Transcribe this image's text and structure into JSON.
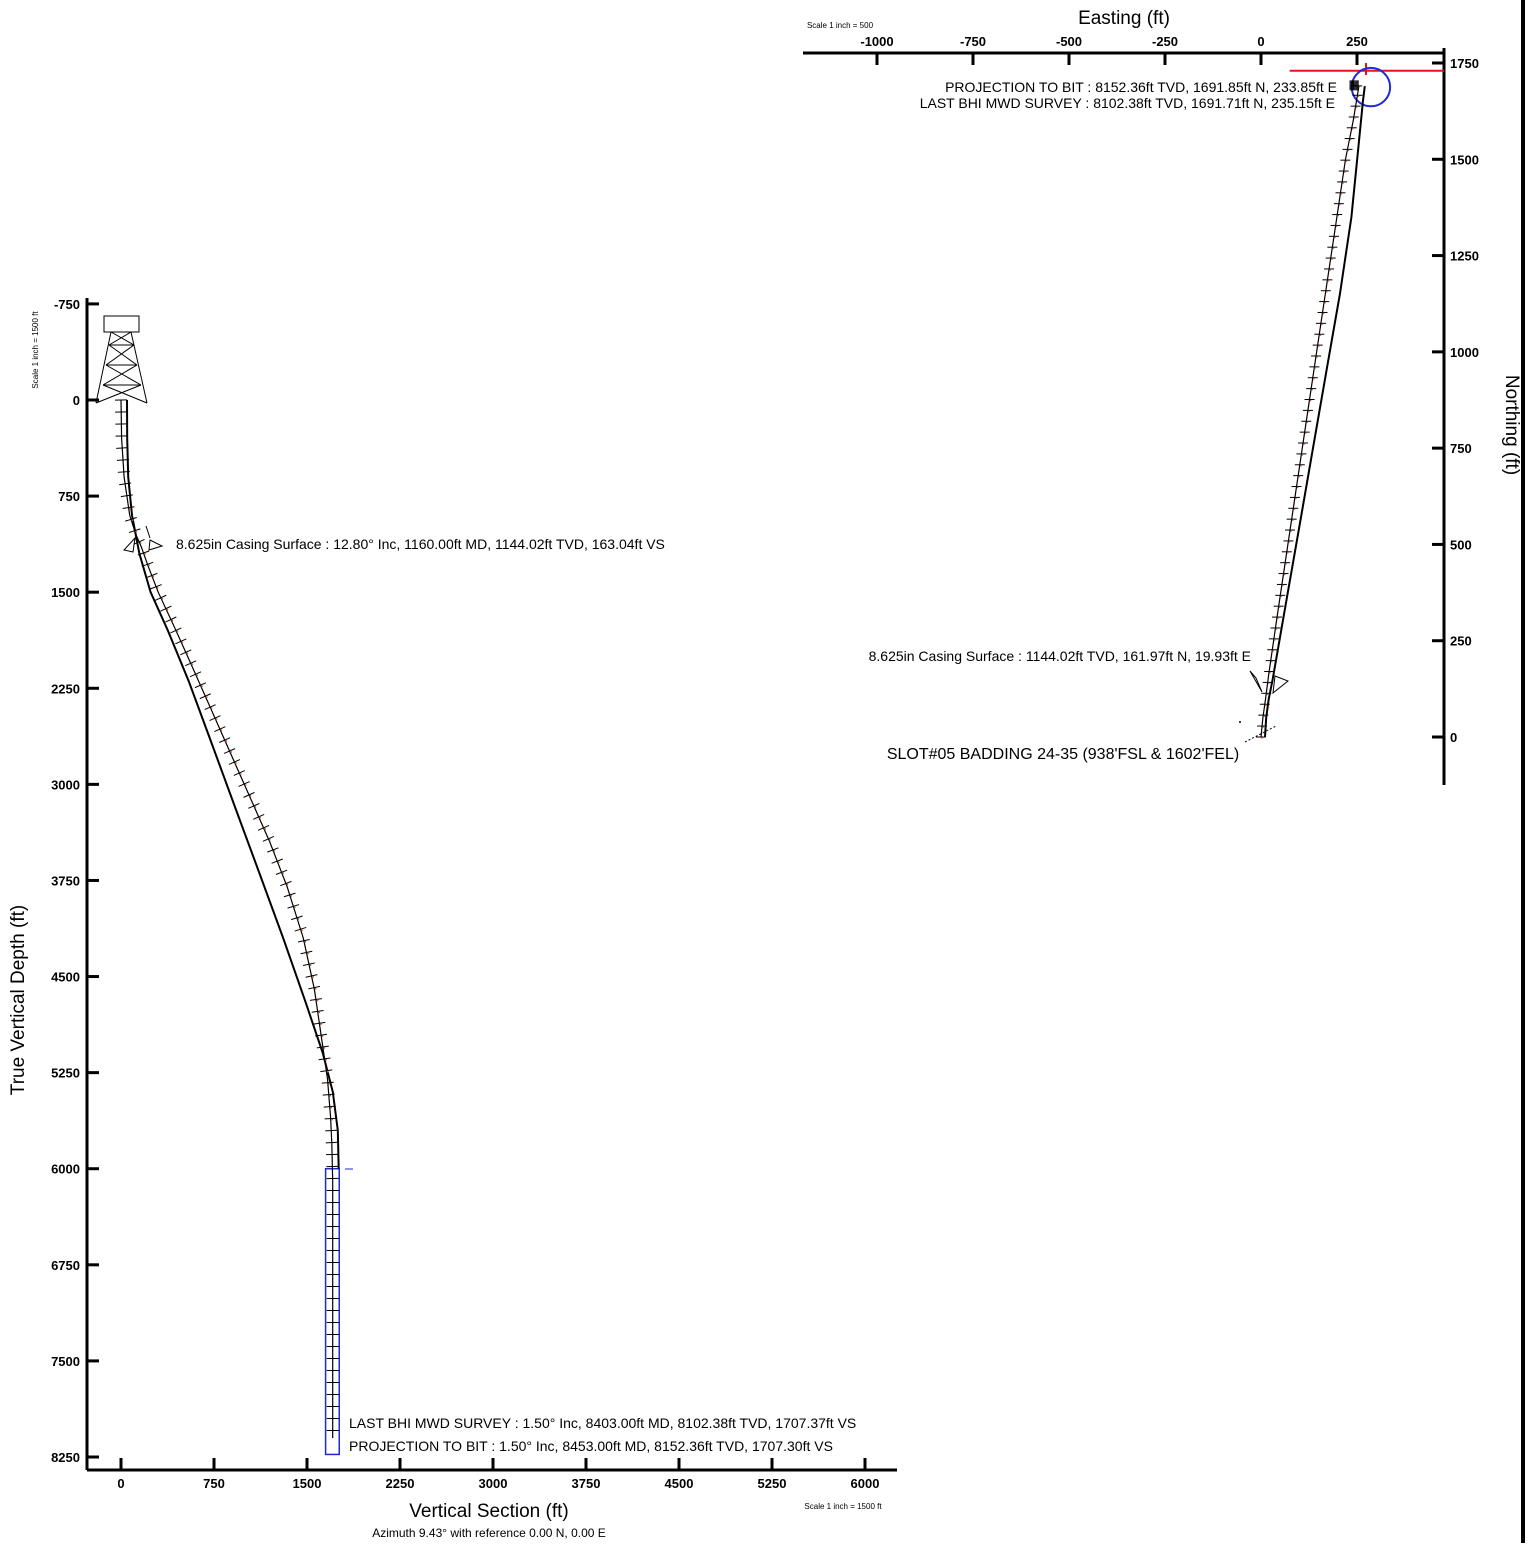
{
  "chart_data": [
    {
      "type": "line",
      "name": "vertical-section",
      "xlabel": "Vertical Section (ft)",
      "ylabel": "True Vertical Depth (ft)",
      "subtitle": "Azimuth 9.43° with reference 0.00 N, 0.00 E",
      "scale_left": "Scale 1 inch = 1500 ft",
      "scale_bottom": "Scale 1 inch = 1500 ft",
      "xlim": [
        -260,
        6080
      ],
      "ylim": [
        -810,
        8330
      ],
      "y_inverted": true,
      "x_ticks": [
        0,
        750,
        1500,
        2250,
        3000,
        3750,
        4500,
        5250,
        6000
      ],
      "x_tick_labels": [
        "0",
        "750",
        "1500",
        "2250",
        "3000",
        "3750",
        "4500",
        "5250",
        "6000"
      ],
      "y_ticks": [
        -750,
        0,
        750,
        1500,
        2250,
        3000,
        3750,
        4500,
        5250,
        6000,
        6750,
        7500,
        8250
      ],
      "y_tick_labels": [
        "-750",
        "0",
        "750",
        "1500",
        "2250",
        "3000",
        "3750",
        "4500",
        "5250",
        "6000",
        "6750",
        "7500",
        "8250"
      ],
      "survey": {
        "vs": [
          0,
          5,
          25,
          70,
          120,
          163,
          220,
          300,
          420,
          560,
          720,
          880,
          1040,
          1200,
          1340,
          1470,
          1560,
          1620,
          1665,
          1690,
          1700,
          1705,
          1707,
          1707
        ],
        "tvd": [
          0,
          300,
          600,
          900,
          1050,
          1144,
          1300,
          1500,
          1750,
          2050,
          2400,
          2750,
          3100,
          3450,
          3800,
          4200,
          4600,
          5000,
          5300,
          5600,
          5800,
          6000,
          6100,
          8102
        ]
      },
      "plan": {
        "vs": [
          0,
          2,
          10,
          40,
          100,
          190,
          330,
          500,
          690,
          880,
          1070,
          1260,
          1440,
          1580,
          1660,
          1700,
          1707
        ],
        "tvd": [
          0,
          300,
          600,
          900,
          1200,
          1500,
          1800,
          2200,
          2700,
          3200,
          3700,
          4200,
          4700,
          5100,
          5400,
          5700,
          6000
        ]
      },
      "target_box": {
        "vs": [
          1650,
          1760
        ],
        "tvd": [
          6000,
          8230
        ]
      },
      "annotations": [
        {
          "text": "8.625in Casing Surface : 12.80° Inc, 1160.00ft MD, 1144.02ft TVD, 163.04ft VS",
          "vs": 163,
          "tvd": 1144
        },
        {
          "text": "LAST BHI MWD SURVEY : 1.50° Inc, 8403.00ft MD, 8102.38ft TVD, 1707.37ft VS",
          "vs": 1707,
          "tvd": 8102
        },
        {
          "text": "PROJECTION TO BIT : 1.50° Inc, 8453.00ft MD, 8152.36ft TVD, 1707.30ft VS",
          "vs": 1707,
          "tvd": 8152
        }
      ],
      "grid": false
    },
    {
      "type": "line",
      "name": "plan-view",
      "xlabel": "Easting (ft)",
      "ylabel": "Northing (ft)",
      "scale_top": "Scale 1 inch = 500",
      "xlim": [
        -1165,
        478
      ],
      "ylim": [
        -125,
        1775
      ],
      "x_ticks": [
        -1000,
        -750,
        -500,
        -250,
        0,
        250
      ],
      "x_tick_labels": [
        "-1000",
        "-750",
        "-500",
        "-250",
        "0",
        "250"
      ],
      "y_ticks": [
        0,
        250,
        500,
        750,
        1000,
        1250,
        1500,
        1750
      ],
      "y_tick_labels": [
        "0",
        "250",
        "500",
        "750",
        "1000",
        "1250",
        "1500",
        "1750"
      ],
      "survey": {
        "e": [
          0,
          5,
          12,
          20,
          40,
          70,
          100,
          130,
          160,
          190,
          220,
          240,
          250,
          255,
          240,
          235
        ],
        "n": [
          0,
          50,
          100,
          162,
          300,
          500,
          700,
          900,
          1100,
          1300,
          1500,
          1600,
          1660,
          1690,
          1692,
          1692
        ]
      },
      "plan": {
        "e": [
          0,
          3,
          10,
          20,
          55,
          90,
          125,
          160,
          195,
          225,
          245,
          255,
          260
        ],
        "n": [
          0,
          50,
          100,
          150,
          350,
          550,
          750,
          950,
          1150,
          1350,
          1550,
          1650,
          1690
        ]
      },
      "target_circle": {
        "e": 255,
        "n": 1690,
        "r": 50
      },
      "target_line": {
        "e1": 85,
        "e2": 478,
        "n": 1735
      },
      "annotations": [
        {
          "text": "PROJECTION TO BIT : 8152.36ft TVD, 1691.85ft N, 233.85ft E",
          "e": 234,
          "n": 1692
        },
        {
          "text": "LAST BHI MWD SURVEY : 8102.38ft TVD, 1691.71ft N, 235.15ft E",
          "e": 235,
          "n": 1692
        },
        {
          "text": "8.625in Casing Surface : 1144.02ft TVD, 161.97ft N, 19.93ft E",
          "e": 20,
          "n": 162
        },
        {
          "text": "SLOT#05 BADDING 24-35 (938'FSL & 1602'FEL)",
          "e": 0,
          "n": 0
        }
      ],
      "grid": false
    }
  ],
  "colors": {
    "axis": "#000000",
    "survey": "#000000",
    "tick_marks": "#000000",
    "plan_line": "#000000",
    "casing_dots": "#c0603a",
    "target": "#1f2ad6",
    "target_line": "#e8121a"
  }
}
